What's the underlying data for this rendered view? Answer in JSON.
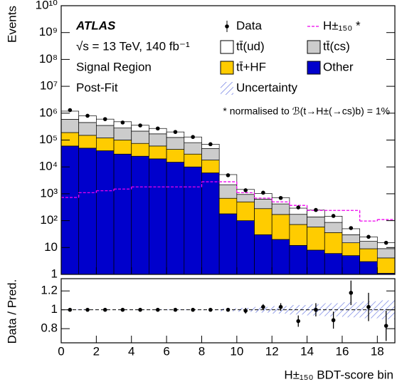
{
  "chart_data": [
    {
      "type": "histogram",
      "y_label": "Events",
      "annotations": [
        "ATLAS",
        "√s = 13 TeV, 140 fb⁻¹",
        "Signal Region",
        "Post-Fit",
        "* normalised to ℬ(t→H±(→cs)b) = 1%"
      ],
      "bins": [
        0,
        1,
        2,
        3,
        4,
        5,
        6,
        7,
        8,
        9,
        10,
        11,
        12,
        13,
        14,
        15,
        16,
        17,
        18,
        19
      ],
      "xlim": [
        0,
        19
      ],
      "xticks": [
        0,
        2,
        4,
        6,
        8,
        10,
        12,
        14,
        16,
        18
      ],
      "log_y": true,
      "ylim": [
        1,
        10000000000
      ],
      "yticks": [
        1,
        10,
        {
          "value": 100,
          "label": "10²"
        },
        {
          "value": 1000,
          "label": "10³"
        },
        {
          "value": 10000,
          "label": "10⁴"
        },
        {
          "value": 100000,
          "label": "10⁵"
        },
        {
          "value": 1000000,
          "label": "10⁶"
        },
        {
          "value": 10000000,
          "label": "10⁷"
        },
        {
          "value": 100000000,
          "label": "10⁸"
        },
        {
          "value": 1000000000,
          "label": "10⁹"
        },
        {
          "value": 10000000000,
          "label": "10¹⁰"
        }
      ],
      "series": [
        {
          "name": "Other",
          "color": "#0000cc",
          "values": [
            60000,
            50000,
            40000,
            30000,
            25000,
            20000,
            15000,
            10000,
            6000,
            180,
            100,
            30,
            20,
            12,
            8,
            6,
            5,
            3,
            1.1
          ]
        },
        {
          "name": "tt̄+HF",
          "color": "#ffcc00",
          "values": [
            130000,
            100000,
            80000,
            70000,
            50000,
            40000,
            30000,
            20000,
            12000,
            500,
            400,
            250,
            150,
            60,
            50,
            30,
            10,
            6,
            3
          ]
        },
        {
          "name": "tt̄(cs)",
          "color": "#cccccc",
          "values": [
            400000,
            300000,
            230000,
            180000,
            140000,
            110000,
            80000,
            50000,
            30000,
            1500,
            450,
            350,
            250,
            100,
            80,
            50,
            15,
            8,
            5
          ]
        },
        {
          "name": "tt̄(ud)",
          "color": "#ffffff",
          "values": [
            600000,
            350000,
            250000,
            200000,
            140000,
            100000,
            75000,
            50000,
            22000,
            3000,
            500,
            400,
            300,
            120,
            110,
            60,
            20,
            8,
            6
          ]
        }
      ],
      "data": {
        "name": "Data",
        "color": "#000000",
        "values": [
          1300000,
          800000,
          600000,
          450000,
          350000,
          270000,
          200000,
          130000,
          70000,
          4900,
          1350,
          1100,
          700,
          310,
          250,
          150,
          53,
          25,
          15
        ]
      },
      "signal": {
        "name": "H±₁₅₀ *",
        "color": "#ee00ee",
        "values": [
          730,
          1100,
          1300,
          1500,
          1800,
          1800,
          1800,
          1800,
          2800,
          2800,
          1100,
          690,
          500,
          370,
          240,
          240,
          240,
          97,
          110
        ]
      }
    },
    {
      "type": "ratio",
      "y_label": "Data / Pred.",
      "x_label": "H±₁₅₀ BDT-score bin",
      "xlim": [
        0,
        19
      ],
      "xticks": [
        0,
        2,
        4,
        6,
        8,
        10,
        12,
        14,
        16,
        18
      ],
      "ylim": [
        0.65,
        1.33
      ],
      "yticks": [
        0.8,
        1,
        1.2
      ],
      "x": [
        0.5,
        1.5,
        2.5,
        3.5,
        4.5,
        5.5,
        6.5,
        7.5,
        8.5,
        9.5,
        10.5,
        11.5,
        12.5,
        13.5,
        14.5,
        15.5,
        16.5,
        17.5,
        18.5
      ],
      "values": [
        1,
        1,
        1,
        1,
        1,
        1,
        1,
        1,
        1,
        1,
        0.99,
        1.03,
        1.03,
        0.88,
        1.0,
        0.89,
        1.18,
        1.03,
        0.83
      ],
      "errors": [
        0.002,
        0.002,
        0.002,
        0.002,
        0.002,
        0.002,
        0.003,
        0.003,
        0.004,
        0.015,
        0.03,
        0.03,
        0.04,
        0.06,
        0.07,
        0.09,
        0.13,
        0.15,
        0.16
      ],
      "uncertainty": {
        "name": "Uncertainty",
        "color": "#5566dd",
        "values": [
          0.003,
          0.003,
          0.003,
          0.003,
          0.003,
          0.003,
          0.004,
          0.004,
          0.005,
          0.015,
          0.02,
          0.03,
          0.04,
          0.05,
          0.06,
          0.07,
          0.08,
          0.09,
          0.1
        ]
      }
    }
  ]
}
